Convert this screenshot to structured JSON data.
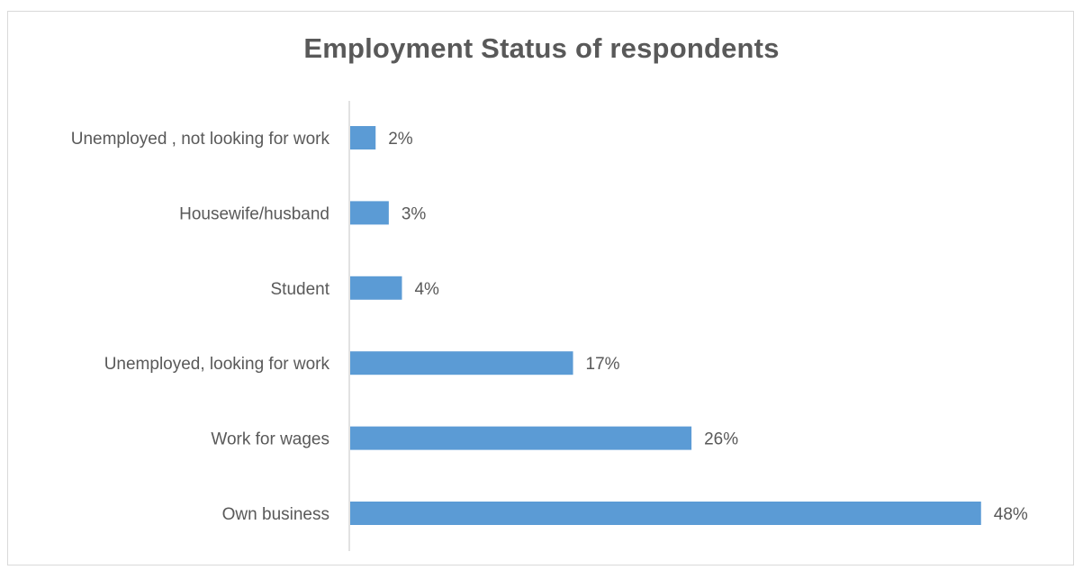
{
  "chart_data": {
    "type": "bar",
    "orientation": "horizontal",
    "title": "Employment Status of respondents",
    "categories": [
      "Unemployed , not looking for work",
      "Housewife/husband",
      "Student",
      "Unemployed, looking for work",
      "Work for wages",
      "Own business"
    ],
    "values": [
      2,
      3,
      4,
      17,
      26,
      48
    ],
    "value_format": "percent",
    "data_labels": [
      "2%",
      "3%",
      "4%",
      "17%",
      "26%",
      "48%"
    ],
    "xlabel": "",
    "ylabel": "",
    "xlim": [
      0,
      50
    ],
    "grid": false,
    "legend": "none",
    "bar_color": "#5b9bd5",
    "text_color": "#595959",
    "axis_color": "#d9d9d9"
  }
}
